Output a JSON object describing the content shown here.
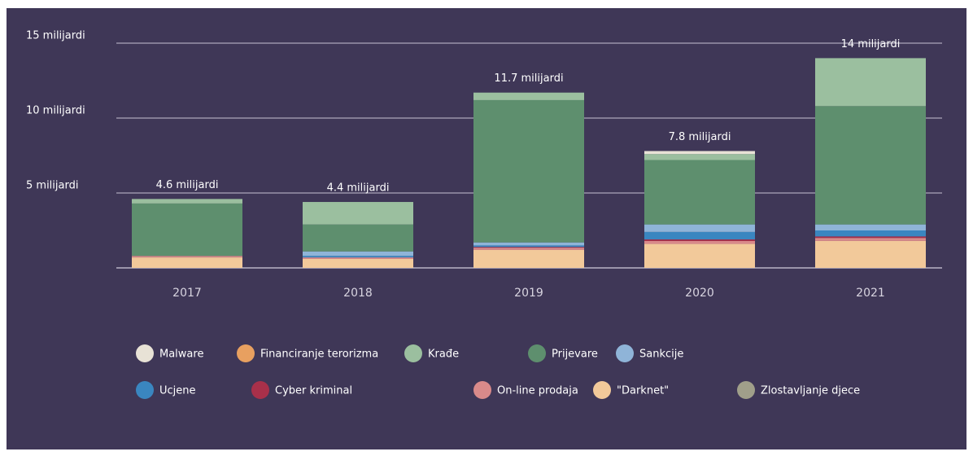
{
  "chart_data": {
    "type": "stacked-bar",
    "categories": [
      "2017",
      "2018",
      "2019",
      "2020",
      "2021"
    ],
    "annotations": [
      "4.6 milijardi",
      "4.4 milijardi",
      "11.7 milijardi",
      "7.8 milijardi",
      "14 milijardi"
    ],
    "ylim": [
      0,
      15
    ],
    "yticks": [
      {
        "value": 5,
        "label": "5 milijardi"
      },
      {
        "value": 10,
        "label": "10 milijardi"
      },
      {
        "value": 15,
        "label": "15 milijardi"
      }
    ],
    "grid": true,
    "series": [
      {
        "name": "\"Darknet\"",
        "color": "#f2c99a",
        "values": [
          0.7,
          0.6,
          1.2,
          1.6,
          1.8
        ]
      },
      {
        "name": "On-line prodaja",
        "color": "#d98a8a",
        "values": [
          0.1,
          0.1,
          0.15,
          0.2,
          0.2
        ]
      },
      {
        "name": "Cyber kriminal",
        "color": "#a8304a",
        "values": [
          0,
          0,
          0.05,
          0.1,
          0.1
        ]
      },
      {
        "name": "Ucjene",
        "color": "#3a86c0",
        "values": [
          0,
          0.1,
          0.1,
          0.5,
          0.4
        ]
      },
      {
        "name": "Sankcije",
        "color": "#8fb4d8",
        "values": [
          0,
          0.3,
          0.2,
          0.5,
          0.4
        ]
      },
      {
        "name": "Prijevare",
        "color": "#5e8f6e",
        "values": [
          3.5,
          1.8,
          9.5,
          4.3,
          7.9
        ]
      },
      {
        "name": "Krađe",
        "color": "#9bbf9f",
        "values": [
          0.3,
          1.5,
          0.5,
          0.4,
          3.2
        ]
      },
      {
        "name": "Malware",
        "color": "#e8e2d6",
        "values": [
          0,
          0,
          0,
          0.2,
          0
        ]
      },
      {
        "name": "Financiranje terorizma",
        "color": "#e8a060",
        "values": [
          0,
          0,
          0,
          0,
          0
        ]
      },
      {
        "name": "Zlostavljanje djece",
        "color": "#a09f8a",
        "values": [
          0,
          0,
          0,
          0,
          0
        ]
      }
    ]
  }
}
